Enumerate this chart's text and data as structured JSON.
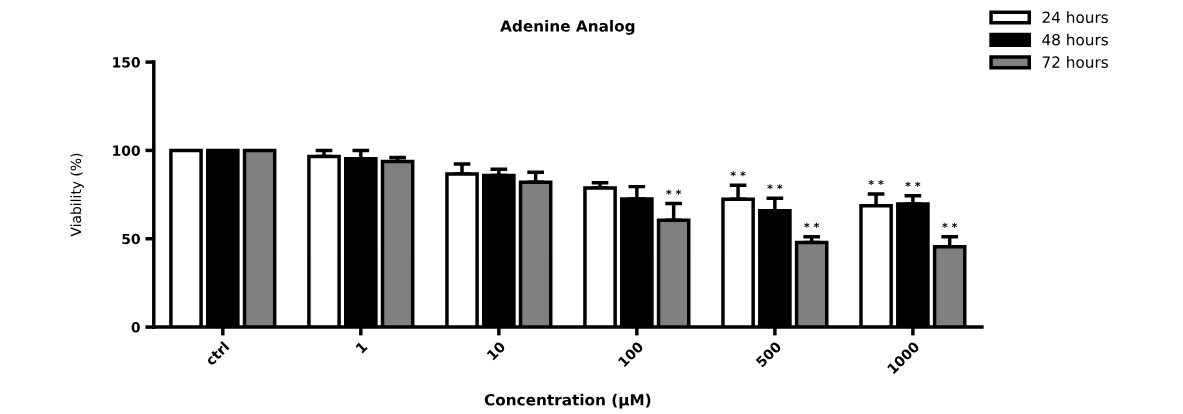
{
  "chart_data": {
    "type": "bar",
    "title": "Adenine Analog",
    "xlabel": "Concentration (µM)",
    "ylabel": "Viability (%)",
    "categories": [
      "ctrl",
      "1",
      "10",
      "100",
      "500",
      "1000"
    ],
    "series": [
      {
        "name": "24 hours",
        "color": "#ffffff",
        "values": [
          100,
          96.5,
          86.7,
          78.7,
          72.3,
          68.7
        ],
        "errors": [
          null,
          3.5,
          5.6,
          3,
          8,
          6.6
        ],
        "value_labels": [
          null,
          null,
          null,
          null,
          "* *",
          "* *"
        ]
      },
      {
        "name": "48 hours",
        "color": "#000000",
        "values": [
          100,
          95.3,
          85.8,
          72.5,
          65.9,
          69.7
        ],
        "errors": [
          null,
          4.7,
          3.5,
          7,
          7,
          4.6
        ],
        "value_labels": [
          null,
          null,
          null,
          null,
          "* *",
          "* *"
        ]
      },
      {
        "name": "72 hours",
        "color": "#808080",
        "values": [
          100,
          93.7,
          82,
          60.5,
          47.9,
          45.5
        ],
        "errors": [
          null,
          2.3,
          5.7,
          9.4,
          3.2,
          5.6
        ],
        "value_labels": [
          null,
          null,
          null,
          "* *",
          "* *",
          "* *"
        ]
      }
    ],
    "ylim": [
      0,
      150
    ],
    "yticks": [
      0,
      50,
      100,
      150
    ],
    "grid": false,
    "legend": "top right"
  }
}
